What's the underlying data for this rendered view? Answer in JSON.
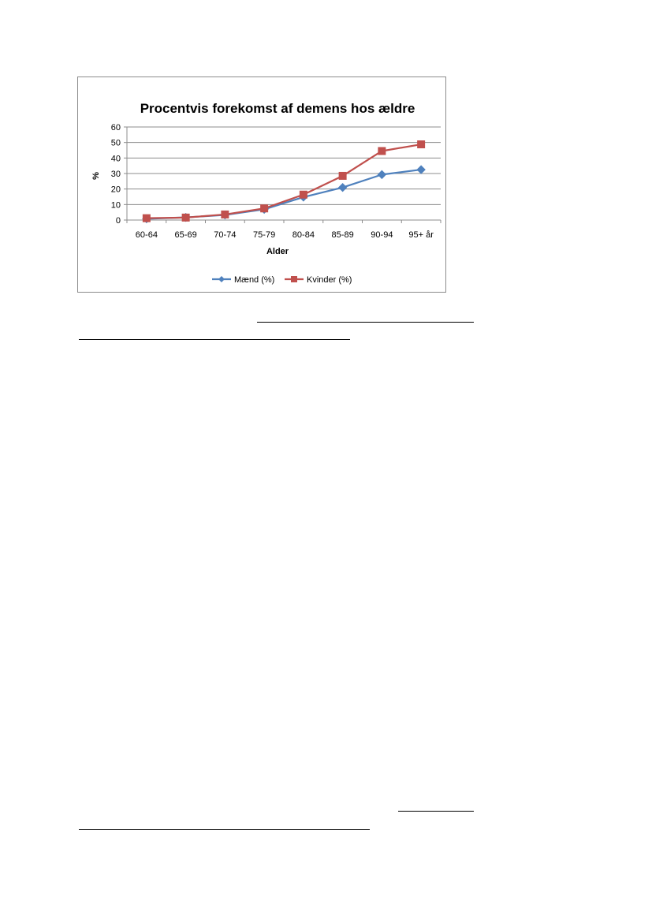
{
  "chart_data": {
    "type": "line",
    "title": "Procentvis forekomst af demens hos ældre",
    "xlabel": "Alder",
    "ylabel": "%",
    "ylim": [
      0,
      60
    ],
    "yticks": [
      "0",
      "10",
      "20",
      "30",
      "40",
      "50",
      "60"
    ],
    "grid": true,
    "legend_position": "bottom",
    "categories": [
      "60-64",
      "65-69",
      "70-74",
      "75-79",
      "80-84",
      "85-89",
      "90-94",
      "95+ år"
    ],
    "series": [
      {
        "name": "Mænd (%)",
        "color": "#4f81bd",
        "marker": "diamond",
        "values": [
          0.8,
          1.7,
          3.3,
          6.9,
          14.8,
          21.0,
          29.3,
          32.5
        ]
      },
      {
        "name": "Kvinder (%)",
        "color": "#c0504d",
        "marker": "square",
        "values": [
          1.2,
          1.6,
          3.6,
          7.5,
          16.4,
          28.5,
          44.5,
          48.8
        ]
      }
    ]
  }
}
